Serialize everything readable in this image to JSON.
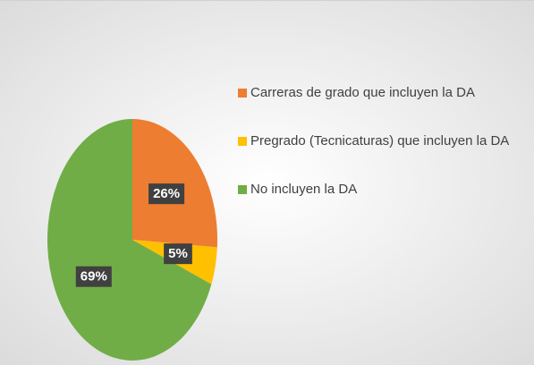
{
  "chart_data": {
    "type": "pie",
    "categories": [
      "Carreras de grado que incluyen la DA",
      "Pregrado (Tecnicaturas) que incluyen la DA",
      "No incluyen la DA"
    ],
    "values": [
      26,
      5,
      69
    ],
    "value_labels": [
      "26%",
      "5%",
      "69%"
    ],
    "colors": [
      "#ed7d31",
      "#ffc000",
      "#70ad47"
    ],
    "legend": "right"
  }
}
